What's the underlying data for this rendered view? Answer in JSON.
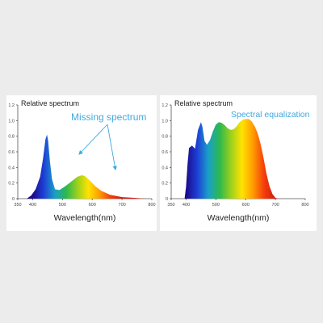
{
  "chart_data": [
    {
      "type": "area",
      "title": "Relative spectrum",
      "xlabel": "Wavelength(nm)",
      "ylabel": "",
      "xlim": [
        350,
        800
      ],
      "ylim": [
        0,
        1.2
      ],
      "xticks": [
        "350",
        "400",
        "500",
        "600",
        "700",
        "800"
      ],
      "yticks": [
        "0",
        "0.2",
        "0.4",
        "0.6",
        "0.8",
        "1.0",
        "1.2"
      ],
      "grid": false,
      "annotations": [
        {
          "text": "Missing spectrum",
          "color": "#3fa9e0"
        }
      ],
      "x": [
        380,
        395,
        410,
        425,
        435,
        443,
        448,
        452,
        458,
        465,
        475,
        490,
        510,
        530,
        550,
        565,
        575,
        590,
        610,
        630,
        660,
        700,
        740,
        780
      ],
      "y": [
        0,
        0.04,
        0.12,
        0.28,
        0.52,
        0.76,
        0.82,
        0.74,
        0.48,
        0.25,
        0.12,
        0.11,
        0.16,
        0.22,
        0.28,
        0.3,
        0.29,
        0.24,
        0.16,
        0.1,
        0.05,
        0.02,
        0.01,
        0
      ]
    },
    {
      "type": "area",
      "title": "Relative spectrum",
      "xlabel": "Wavelength(nm)",
      "ylabel": "",
      "xlim": [
        350,
        800
      ],
      "ylim": [
        0,
        1.2
      ],
      "xticks": [
        "350",
        "400",
        "500",
        "600",
        "700",
        "800"
      ],
      "yticks": [
        "0",
        "0.2",
        "0.4",
        "0.6",
        "0.8",
        "1.0",
        "1.2"
      ],
      "grid": false,
      "annotations": [
        {
          "text": "Spectral equalization",
          "color": "#3fa9e0"
        }
      ],
      "x": [
        395,
        400,
        405,
        410,
        420,
        430,
        440,
        450,
        455,
        462,
        470,
        480,
        490,
        500,
        510,
        520,
        530,
        540,
        550,
        560,
        570,
        580,
        590,
        600,
        610,
        620,
        630,
        640,
        650,
        660,
        670,
        680,
        690,
        700,
        710
      ],
      "y": [
        0,
        0.15,
        0.45,
        0.65,
        0.68,
        0.64,
        0.88,
        0.98,
        0.92,
        0.74,
        0.69,
        0.75,
        0.86,
        0.95,
        0.98,
        0.97,
        0.94,
        0.9,
        0.88,
        0.89,
        0.93,
        0.98,
        1.01,
        1.02,
        1.02,
        0.99,
        0.93,
        0.84,
        0.7,
        0.52,
        0.32,
        0.16,
        0.06,
        0.01,
        0
      ]
    }
  ],
  "spectrum_colors": [
    "#1a0b8c",
    "#1e3fd6",
    "#1aa0c8",
    "#2cb84e",
    "#9ad01e",
    "#ffe300",
    "#ff9a00",
    "#f43c0c",
    "#d11b0e"
  ]
}
